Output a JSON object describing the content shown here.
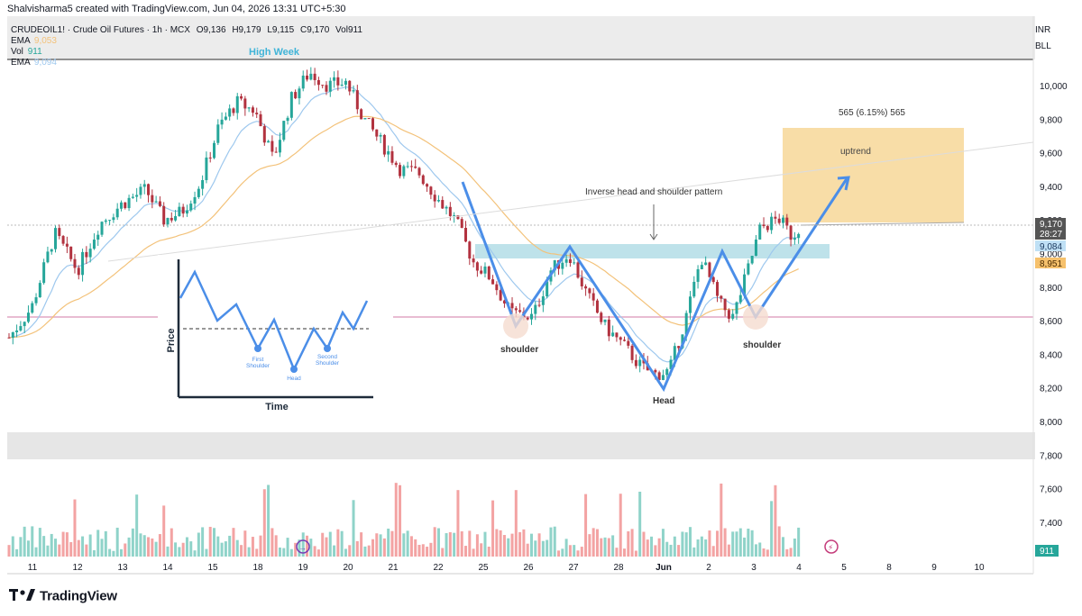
{
  "header": {
    "created_by": "Shalvisharma5 created with TradingView.com, Jun 04, 2026 13:31 UTC+5:30",
    "symbol_line": "CRUDEOIL1! · Crude Oil Futures · 1h · MCX",
    "ohlc": {
      "O": "9,136",
      "H": "9,179",
      "L": "9,115",
      "C": "9,170"
    },
    "vol_label": "Vol",
    "vol_value": "911",
    "ema1_label": "EMA",
    "ema1_value": "9,053",
    "vol2_label": "Vol",
    "vol2_value": "911",
    "ema2_label": "EMA",
    "ema2_value": "9,094"
  },
  "badges": {
    "currency": "INR",
    "extra": "BLL"
  },
  "brand": {
    "name": "TradingView"
  },
  "colors": {
    "up": "#26a69a",
    "down": "#b2323f",
    "pattern": "#4b8ee8",
    "zone": "#a8d8e3",
    "target": "#f5d18a",
    "ema_fast": "#9ec8ee",
    "ema_slow": "#f3c27a"
  },
  "chart_data": {
    "type": "candlestick",
    "symbol": "CRUDEOIL1!",
    "interval": "1h",
    "x_tick_labels": [
      "11",
      "12",
      "13",
      "14",
      "15",
      "18",
      "19",
      "20",
      "21",
      "22",
      "25",
      "26",
      "27",
      "28",
      "Jun",
      "2",
      "3",
      "4",
      "5",
      "8",
      "9",
      "10"
    ],
    "y_tick_labels": [
      "10,000",
      "9,800",
      "9,600",
      "9,400",
      "9,200",
      "9,000",
      "8,800",
      "8,600",
      "8,400",
      "8,200",
      "8,000",
      "7,800",
      "7,600",
      "7,400"
    ],
    "ylim": [
      7200,
      10400
    ],
    "price_path": [
      [
        0,
        8500
      ],
      [
        0.5,
        8680
      ],
      [
        1,
        9120
      ],
      [
        1.5,
        8900
      ],
      [
        2,
        9180
      ],
      [
        2.5,
        9300
      ],
      [
        3,
        9380
      ],
      [
        3.4,
        9200
      ],
      [
        3.8,
        9250
      ],
      [
        4.2,
        9420
      ],
      [
        4.6,
        9750
      ],
      [
        5,
        9900
      ],
      [
        5.4,
        9850
      ],
      [
        5.8,
        9560
      ],
      [
        6.2,
        9920
      ],
      [
        6.6,
        10080
      ],
      [
        7,
        10000
      ],
      [
        7.4,
        10020
      ],
      [
        7.8,
        9800
      ],
      [
        8.2,
        9650
      ],
      [
        8.6,
        9500
      ],
      [
        9,
        9480
      ],
      [
        9.4,
        9330
      ],
      [
        9.8,
        9200
      ],
      [
        10.2,
        8950
      ],
      [
        10.6,
        8850
      ],
      [
        11,
        8650
      ],
      [
        11.5,
        8620
      ],
      [
        11.9,
        8900
      ],
      [
        12.3,
        9000
      ],
      [
        12.7,
        8750
      ],
      [
        13.1,
        8560
      ],
      [
        13.5,
        8450
      ],
      [
        13.9,
        8320
      ],
      [
        14.2,
        8280
      ],
      [
        14.5,
        8300
      ],
      [
        14.9,
        8650
      ],
      [
        15.2,
        8980
      ],
      [
        15.6,
        8700
      ],
      [
        15.9,
        8620
      ],
      [
        16.2,
        8880
      ],
      [
        16.5,
        9150
      ],
      [
        16.9,
        9210
      ],
      [
        17.2,
        9100
      ],
      [
        17.4,
        9170
      ]
    ],
    "annotations": {
      "high_week": "High Week",
      "pattern_label": "Inverse head and shoulder pattern",
      "target_label": "565 (6.15%) 565",
      "trend_label": "uptrend",
      "left_shoulder": "shoulder",
      "head": "Head",
      "right_shoulder": "shoulder"
    },
    "price_labels": {
      "last": "9,170",
      "countdown": "28:27",
      "ema_fast": "9,084",
      "ema_slow": "8,951",
      "volume": "911"
    },
    "inset": {
      "ylabel": "Price",
      "xlabel": "Time",
      "first_shoulder": "First Shoulder",
      "head": "Head",
      "second_shoulder": "Second Shoulder"
    }
  }
}
